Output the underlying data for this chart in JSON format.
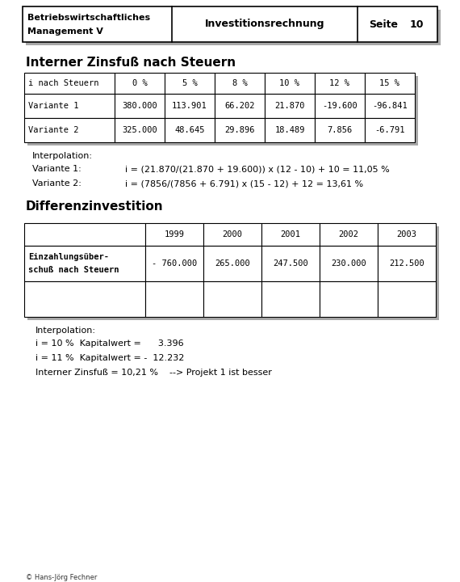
{
  "header": {
    "left1": "Betriebswirtschaftliches",
    "left2": "Management V",
    "center": "Investitionsrechnung",
    "right_label": "Seite",
    "right_num": "10"
  },
  "section1_title": "Interner Zinsfuß nach Steuern",
  "table1_header": [
    "i nach Steuern",
    "0 %",
    "5 %",
    "8 %",
    "10 %",
    "12 %",
    "15 %"
  ],
  "table1_rows": [
    [
      "Variante 1",
      "380.000",
      "113.901",
      "66.202",
      "21.870",
      "-19.600",
      "-96.841"
    ],
    [
      "Variante 2",
      "325.000",
      "48.645",
      "29.896",
      "18.489",
      "7.856",
      "-6.791"
    ]
  ],
  "interp1_label": "Interpolation:",
  "var1_label": "Variante 1:",
  "var1_formula": "i = (21.870/(21.870 + 19.600)) x (12 - 10) + 10 = 11,05 %",
  "var2_label": "Variante 2:",
  "var2_formula": "i = (7856/(7856 + 6.791) x (15 - 12) + 12 = 13,61 %",
  "section2_title": "Differenzinvestition",
  "table2_header": [
    "",
    "1999",
    "2000",
    "2001",
    "2002",
    "2003"
  ],
  "table2_row1_label1": "Einzahlungsüber-",
  "table2_row1_label2": "schuß nach Steuern",
  "table2_row1_vals": [
    "- 760.000",
    "265.000",
    "247.500",
    "230.000",
    "212.500"
  ],
  "interp2_label": "Interpolation:",
  "kapital1": "i = 10 %  Kapitalwert =      3.396",
  "kapital2": "i = 11 %  Kapitalwert = -  12.232",
  "zinsfuss": "Interner Zinsfuß = 10,21 %    --> Projekt 1 ist besser",
  "copyright": "© Hans-Jörg Fechner",
  "shadow_color": "#a8a8a8",
  "border_color": "#000000",
  "bg_color": "#ffffff"
}
